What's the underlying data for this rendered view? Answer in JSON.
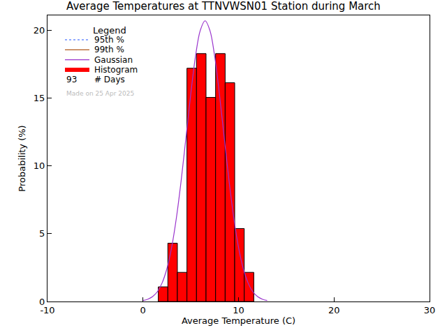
{
  "chart_data": {
    "type": "histogram",
    "title": "Average Temperatures at TTNVWSN01 Station during March",
    "x_label": "Average Temperature (C)",
    "y_label": "Probability (%)",
    "bins": [
      1.6,
      2.6,
      3.6,
      4.6,
      5.6,
      6.6,
      7.6,
      8.6,
      9.6,
      10.6,
      11.6
    ],
    "series": [
      {
        "name": "95th %",
        "type": "line",
        "color": "#2255ff",
        "line_style": "dotted"
      },
      {
        "name": "99th %",
        "type": "line",
        "color": "#b05a1e",
        "line_style": "solid"
      },
      {
        "name": "Gaussian",
        "type": "line",
        "color": "#9933cc",
        "line_style": "solid",
        "x": [
          0,
          0.5,
          1,
          1.5,
          2,
          2.5,
          3,
          3.5,
          4,
          4.5,
          5,
          5.5,
          6,
          6.5,
          7,
          7.5,
          8,
          8.5,
          9,
          9.5,
          10,
          10.5,
          11,
          11.5,
          12,
          12.5,
          13
        ],
        "values": [
          0.07,
          0.17,
          0.36,
          0.72,
          1.37,
          2.42,
          4.0,
          6.19,
          8.95,
          12.1,
          15.3,
          18.1,
          20.0,
          20.7,
          20.0,
          18.1,
          15.3,
          12.1,
          8.95,
          6.19,
          4.0,
          2.42,
          1.37,
          0.72,
          0.36,
          0.17,
          0.07
        ]
      },
      {
        "name": "Histogram",
        "type": "bar",
        "color": "#ff0000",
        "values": [
          1.08,
          4.3,
          2.15,
          17.2,
          18.28,
          15.05,
          18.28,
          16.13,
          5.38,
          2.15
        ]
      }
    ],
    "xlim": [
      -10,
      30
    ],
    "xticks": [
      -10,
      0,
      10,
      20,
      30
    ],
    "ylim": [
      0,
      21.1
    ],
    "yticks": [
      0,
      5,
      10,
      15,
      20
    ],
    "grid": false,
    "legend": "top-left",
    "legend_title": "Legend",
    "days": 93,
    "days_label": "# Days",
    "annotation": "Made on 25 Apr 2025"
  }
}
